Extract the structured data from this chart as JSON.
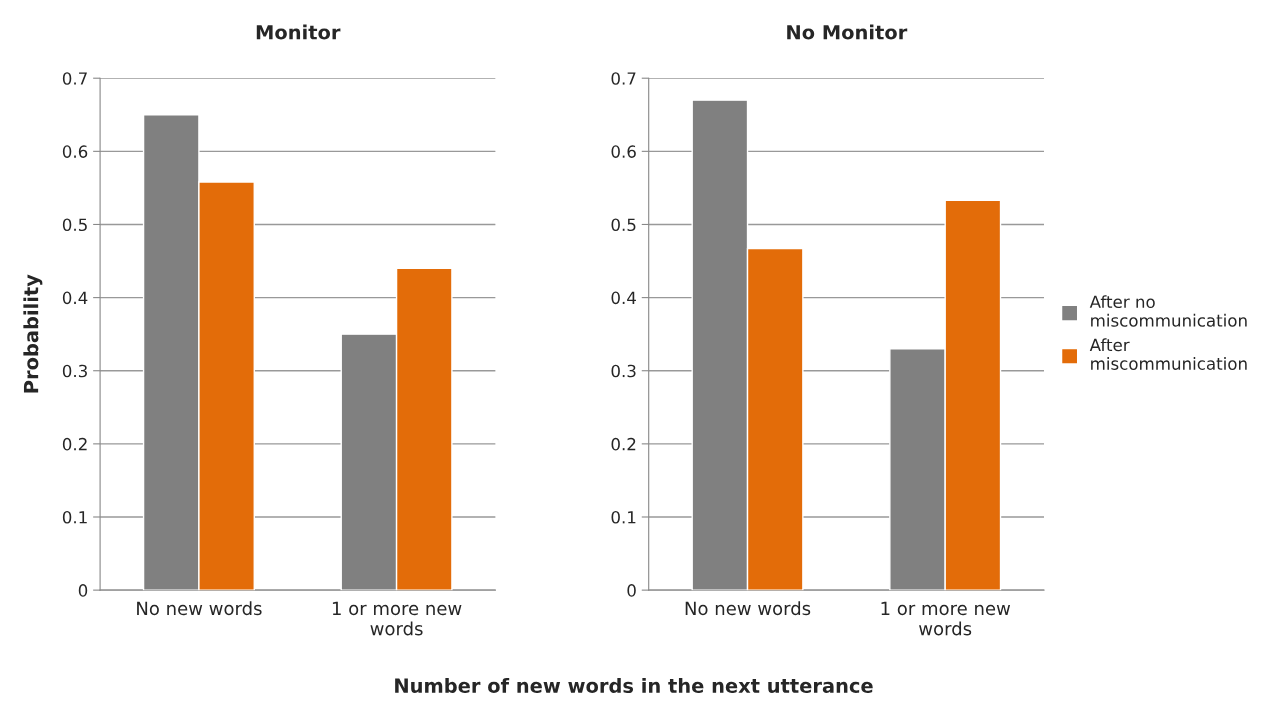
{
  "chart_data": [
    {
      "type": "bar",
      "title": "Monitor",
      "ylabel": "Probability",
      "xlabel": "Number of new words in the next utterance",
      "categories": [
        "No new words",
        "1 or more new\nwords"
      ],
      "series": [
        {
          "color": "#808080",
          "values": [
            0.65,
            0.35
          ]
        },
        {
          "color": "#e36c09",
          "values": [
            0.558,
            0.44
          ]
        }
      ],
      "ylim": [
        0,
        0.7
      ],
      "yticks": [
        0,
        0.1,
        0.2,
        0.3,
        0.4,
        0.5,
        0.6,
        0.7
      ],
      "grid": "y"
    },
    {
      "type": "bar",
      "title": "No Monitor",
      "categories": [
        "No new words",
        "1 or more new\nwords"
      ],
      "series": [
        {
          "name": "After no\nmiscommunication",
          "color": "#808080",
          "values": [
            0.67,
            0.33
          ]
        },
        {
          "name": "After\nmiscommunication",
          "color": "#e36c09",
          "values": [
            0.467,
            0.533
          ]
        }
      ],
      "ylim": [
        0,
        0.7
      ],
      "yticks": [
        0,
        0.1,
        0.2,
        0.3,
        0.4,
        0.5,
        0.6,
        0.7
      ],
      "grid": "y",
      "legend": "right"
    }
  ]
}
